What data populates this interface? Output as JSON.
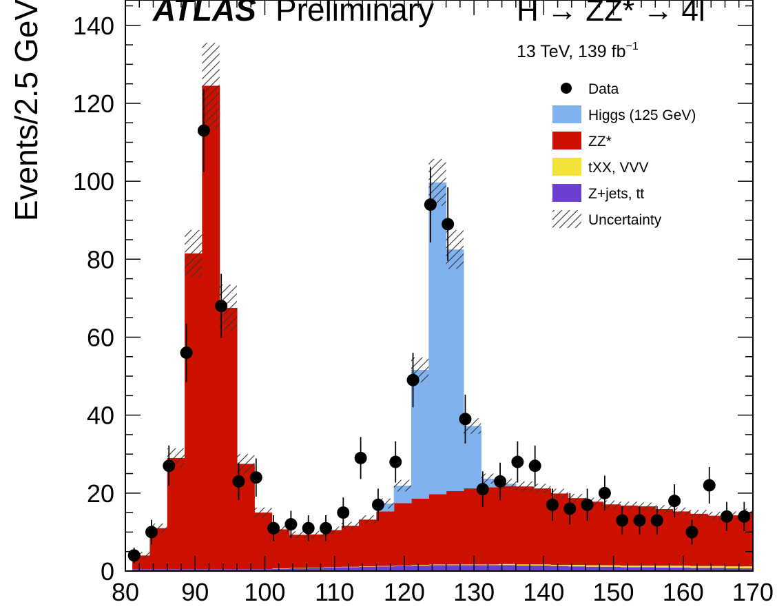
{
  "chart_data": {
    "type": "bar",
    "stacked": true,
    "experiment": "ATLAS",
    "experiment_tag": "Preliminary",
    "process": "H → ZZ* → 4l",
    "energy_lumi": "13 TeV, 139 fb",
    "lumi_exponent": "−1",
    "ylabel": "Events/2.5 GeV",
    "xlabel": "",
    "xlim": [
      80,
      170
    ],
    "ylim": [
      0,
      145
    ],
    "bin_width": 2.5,
    "x_ticks": [
      80,
      90,
      100,
      110,
      120,
      130,
      140,
      150,
      160,
      170
    ],
    "y_ticks": [
      0,
      20,
      40,
      60,
      80,
      100,
      120,
      140
    ],
    "bin_edges": [
      81,
      83.5,
      86,
      88.5,
      91,
      93.5,
      96,
      98.5,
      101,
      103.5,
      106,
      108.5,
      111,
      113.5,
      116,
      118.5,
      121,
      123.5,
      126,
      128.5,
      131,
      133.5,
      136,
      138.5,
      141,
      143.5,
      146,
      148.5,
      151,
      153.5,
      156,
      158.5,
      161,
      163.5,
      166,
      168.5,
      171
    ],
    "legend": {
      "position": "top-right",
      "entries": [
        {
          "key": "data",
          "label": "Data",
          "style": "marker"
        },
        {
          "key": "higgs",
          "label": "Higgs (125 GeV)",
          "style": "fill",
          "color": "#7fb2ef"
        },
        {
          "key": "zz",
          "label": "ZZ*",
          "style": "fill",
          "color": "#cc1100"
        },
        {
          "key": "txx",
          "label": "tXX, VVV",
          "style": "fill",
          "color": "#f2e23a"
        },
        {
          "key": "zjets",
          "label": "Z+jets, tt",
          "style": "fill",
          "color": "#6a3fd0"
        },
        {
          "key": "unc",
          "label": "Uncertainty",
          "style": "hatch"
        }
      ]
    },
    "series": [
      {
        "name": "Z+jets, tt",
        "key": "zjets",
        "color": "#6a3fd0",
        "values": [
          0.5,
          0.5,
          0.5,
          0.5,
          0.5,
          0.5,
          0.5,
          0.5,
          0.6,
          0.7,
          0.8,
          0.9,
          1.0,
          1.1,
          1.2,
          1.3,
          1.4,
          1.5,
          1.5,
          1.5,
          1.5,
          1.5,
          1.4,
          1.4,
          1.3,
          1.2,
          1.1,
          1.1,
          1.0,
          1.0,
          0.9,
          0.9,
          0.8,
          0.8,
          0.7,
          0.7
        ]
      },
      {
        "name": "tXX, VVV",
        "key": "txx",
        "color": "#f2e23a",
        "values": [
          0,
          0,
          0,
          0,
          0,
          0,
          0,
          0,
          0.1,
          0.1,
          0.1,
          0.1,
          0.1,
          0.1,
          0.1,
          0.1,
          0.2,
          0.2,
          0.2,
          0.2,
          0.2,
          0.3,
          0.3,
          0.3,
          0.3,
          0.4,
          0.4,
          0.4,
          0.4,
          0.4,
          0.5,
          0.5,
          0.5,
          0.5,
          0.5,
          0.5
        ]
      },
      {
        "name": "ZZ*",
        "key": "zz",
        "color": "#cc1100",
        "values": [
          3.5,
          10.5,
          28.5,
          81,
          124,
          67,
          27,
          14.5,
          10,
          8.5,
          8.5,
          9.5,
          10.5,
          12,
          14,
          16,
          17,
          18,
          18.8,
          19.5,
          19.8,
          20,
          20,
          19.5,
          18.3,
          17.1,
          16.3,
          15.6,
          15.4,
          15.2,
          14.5,
          13.9,
          13.4,
          12.9,
          13.1,
          13.8
        ]
      },
      {
        "name": "Higgs (125 GeV)",
        "key": "higgs",
        "color": "#7fb2ef",
        "values": [
          0,
          0,
          0,
          0,
          0,
          0,
          0,
          0,
          0,
          0,
          0,
          0,
          0,
          0,
          2,
          4.5,
          33,
          80,
          62,
          16,
          2.2,
          0.6,
          0,
          0,
          0,
          0,
          0,
          0,
          0,
          0,
          0,
          0,
          0,
          0,
          0,
          0
        ]
      }
    ],
    "uncertainty": [
      0.9,
      1.2,
      2.5,
      6,
      11,
      6,
      2.5,
      1.3,
      1.0,
      0.9,
      0.9,
      0.9,
      1.0,
      1.1,
      1.3,
      1.5,
      3.2,
      6,
      5,
      2,
      1.3,
      1.3,
      1.3,
      1.2,
      1.2,
      1.1,
      1.0,
      1.0,
      1.0,
      1.0,
      1.0,
      1.0,
      1.0,
      1.0,
      1.0,
      1.0
    ],
    "data_points": {
      "x": [
        81.25,
        83.75,
        86.25,
        88.75,
        91.25,
        93.75,
        96.25,
        98.75,
        101.25,
        103.75,
        106.25,
        108.75,
        111.25,
        113.75,
        116.25,
        118.75,
        121.25,
        123.75,
        126.25,
        128.75,
        131.25,
        133.75,
        136.25,
        138.75,
        141.25,
        143.75,
        146.25,
        148.75,
        151.25,
        153.75,
        156.25,
        158.75,
        161.25,
        163.75,
        166.25,
        168.75
      ],
      "y": [
        4,
        10,
        27,
        56,
        113,
        68,
        23,
        24,
        11,
        12,
        11,
        11,
        15,
        29,
        17,
        28,
        49,
        94,
        89,
        39,
        21,
        23,
        28,
        27,
        17,
        16,
        17,
        20,
        13,
        13,
        13,
        18,
        10,
        22,
        14,
        14
      ]
    }
  }
}
